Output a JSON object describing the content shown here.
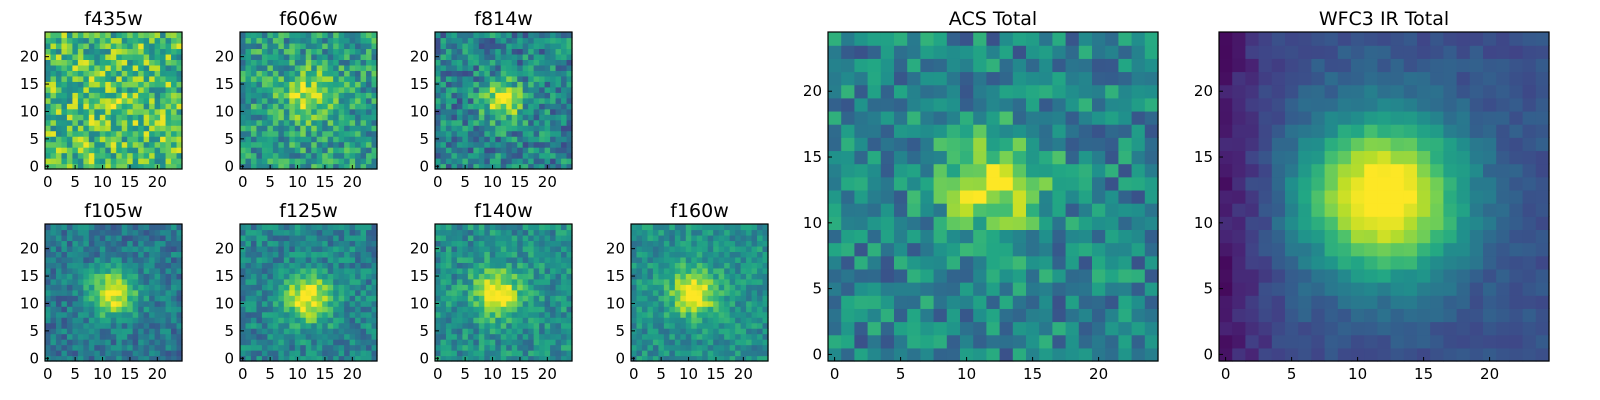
{
  "chart_data": [
    {
      "type": "heatmap",
      "title": "f435w",
      "colormap": "viridis",
      "grid_size": 25,
      "peak": [
        11,
        12
      ],
      "peak_strength": 0.08,
      "peak_sigma": 3.0,
      "noise": 0.55,
      "base": 0.7,
      "xticks": [
        0,
        5,
        10,
        15,
        20
      ],
      "yticks": [
        0,
        5,
        10,
        15,
        20
      ],
      "seed": 11
    },
    {
      "type": "heatmap",
      "title": "f606w",
      "colormap": "viridis",
      "grid_size": 25,
      "peak": [
        12,
        13
      ],
      "peak_strength": 0.35,
      "peak_sigma": 3.2,
      "noise": 0.45,
      "base": 0.55,
      "xticks": [
        0,
        5,
        10,
        15,
        20
      ],
      "yticks": [
        0,
        5,
        10,
        15,
        20
      ],
      "seed": 23
    },
    {
      "type": "heatmap",
      "title": "f814w",
      "colormap": "viridis",
      "grid_size": 25,
      "peak": [
        12,
        12
      ],
      "peak_strength": 0.5,
      "peak_sigma": 2.6,
      "noise": 0.45,
      "base": 0.45,
      "xticks": [
        0,
        5,
        10,
        15,
        20
      ],
      "yticks": [
        0,
        5,
        10,
        15,
        20
      ],
      "seed": 37
    },
    {
      "type": "heatmap",
      "title": "f105w",
      "colormap": "viridis",
      "grid_size": 25,
      "peak": [
        12,
        12
      ],
      "peak_strength": 0.6,
      "peak_sigma": 3.0,
      "noise": 0.3,
      "base": 0.4,
      "xticks": [
        0,
        5,
        10,
        15,
        20
      ],
      "yticks": [
        0,
        5,
        10,
        15,
        20
      ],
      "seed": 41
    },
    {
      "type": "heatmap",
      "title": "f125w",
      "colormap": "viridis",
      "grid_size": 25,
      "peak": [
        12,
        11
      ],
      "peak_strength": 0.55,
      "peak_sigma": 3.2,
      "noise": 0.32,
      "base": 0.45,
      "xticks": [
        0,
        5,
        10,
        15,
        20
      ],
      "yticks": [
        0,
        5,
        10,
        15,
        20
      ],
      "seed": 53
    },
    {
      "type": "heatmap",
      "title": "f140w",
      "colormap": "viridis",
      "grid_size": 25,
      "peak": [
        11,
        12
      ],
      "peak_strength": 0.5,
      "peak_sigma": 3.0,
      "noise": 0.32,
      "base": 0.5,
      "xticks": [
        0,
        5,
        10,
        15,
        20
      ],
      "yticks": [
        0,
        5,
        10,
        15,
        20
      ],
      "seed": 67
    },
    {
      "type": "heatmap",
      "title": "f160w",
      "colormap": "viridis",
      "grid_size": 25,
      "peak": [
        11,
        12
      ],
      "peak_strength": 0.55,
      "peak_sigma": 3.0,
      "noise": 0.28,
      "base": 0.5,
      "xticks": [
        0,
        5,
        10,
        15,
        20
      ],
      "yticks": [
        0,
        5,
        10,
        15,
        20
      ],
      "seed": 79
    },
    {
      "type": "heatmap",
      "title": "ACS Total",
      "colormap": "viridis",
      "grid_size": 25,
      "peak": [
        12,
        13
      ],
      "peak_strength": 0.5,
      "peak_sigma": 2.8,
      "noise": 0.4,
      "base": 0.45,
      "xticks": [
        0,
        5,
        10,
        15,
        20
      ],
      "yticks": [
        0,
        5,
        10,
        15,
        20
      ],
      "seed": 97
    },
    {
      "type": "heatmap",
      "title": "WFC3 IR Total",
      "colormap": "viridis",
      "grid_size": 25,
      "peak": [
        12,
        12
      ],
      "peak_strength": 0.85,
      "peak_sigma": 4.2,
      "noise": 0.1,
      "base": 0.25,
      "xticks": [
        0,
        5,
        10,
        15,
        20
      ],
      "yticks": [
        0,
        5,
        10,
        15,
        20
      ],
      "seed": 103
    }
  ]
}
